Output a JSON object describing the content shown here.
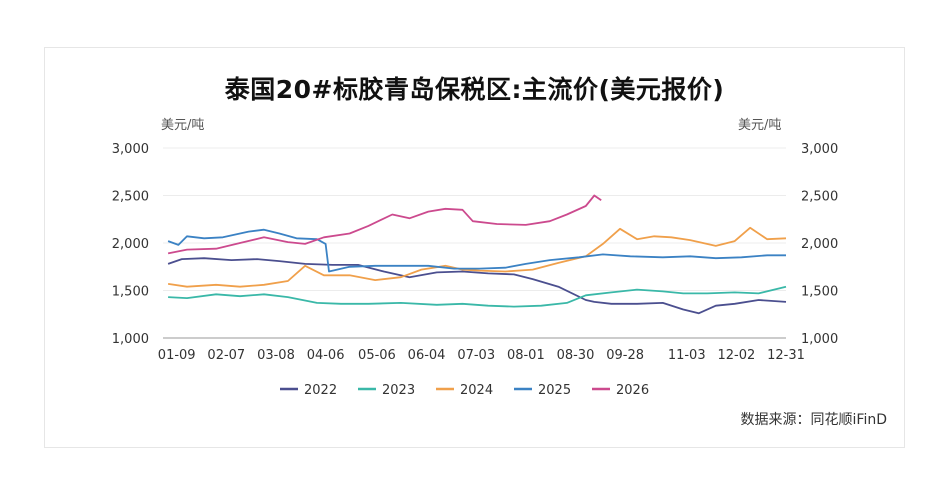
{
  "chart_data": {
    "type": "line",
    "title": "泰国20#标胶青岛保税区:主流价(美元报价)",
    "ylabel_left": "美元/吨",
    "ylabel_right": "美元/吨",
    "ylim": [
      1000,
      3000
    ],
    "yticks": [
      1000,
      1500,
      2000,
      2500,
      3000
    ],
    "ytick_labels": [
      "1,000",
      "1,500",
      "2,000",
      "2,500",
      "3,000"
    ],
    "xticks": [
      "01-09",
      "02-07",
      "03-08",
      "04-06",
      "05-06",
      "06-04",
      "07-03",
      "08-01",
      "08-30",
      "09-28",
      "11-03",
      "12-02",
      "12-31"
    ],
    "x_domain": [
      "01-01",
      "12-31"
    ],
    "grid": true,
    "legend_position": "bottom",
    "source": "数据来源：同花顺iFinD",
    "series": [
      {
        "name": "2022",
        "color": "#4b4f8f",
        "points": [
          [
            "01-04",
            1780
          ],
          [
            "01-12",
            1830
          ],
          [
            "01-25",
            1840
          ],
          [
            "02-10",
            1820
          ],
          [
            "02-25",
            1830
          ],
          [
            "03-10",
            1810
          ],
          [
            "03-25",
            1780
          ],
          [
            "04-10",
            1770
          ],
          [
            "04-25",
            1770
          ],
          [
            "05-10",
            1700
          ],
          [
            "05-25",
            1640
          ],
          [
            "06-10",
            1690
          ],
          [
            "06-25",
            1700
          ],
          [
            "07-10",
            1680
          ],
          [
            "07-25",
            1670
          ],
          [
            "08-05",
            1620
          ],
          [
            "08-20",
            1540
          ],
          [
            "09-05",
            1400
          ],
          [
            "09-10",
            1380
          ],
          [
            "09-20",
            1360
          ],
          [
            "10-05",
            1360
          ],
          [
            "10-20",
            1370
          ],
          [
            "11-01",
            1300
          ],
          [
            "11-10",
            1260
          ],
          [
            "11-20",
            1340
          ],
          [
            "12-01",
            1360
          ],
          [
            "12-15",
            1400
          ],
          [
            "12-31",
            1380
          ]
        ]
      },
      {
        "name": "2023",
        "color": "#3ab8a8",
        "points": [
          [
            "01-04",
            1430
          ],
          [
            "01-15",
            1420
          ],
          [
            "02-01",
            1460
          ],
          [
            "02-15",
            1440
          ],
          [
            "03-01",
            1460
          ],
          [
            "03-15",
            1430
          ],
          [
            "04-01",
            1370
          ],
          [
            "04-15",
            1360
          ],
          [
            "05-01",
            1360
          ],
          [
            "05-20",
            1370
          ],
          [
            "06-10",
            1350
          ],
          [
            "06-25",
            1360
          ],
          [
            "07-10",
            1340
          ],
          [
            "07-25",
            1330
          ],
          [
            "08-10",
            1340
          ],
          [
            "08-25",
            1370
          ],
          [
            "09-05",
            1450
          ],
          [
            "09-20",
            1480
          ],
          [
            "10-05",
            1510
          ],
          [
            "10-20",
            1490
          ],
          [
            "11-01",
            1470
          ],
          [
            "11-15",
            1470
          ],
          [
            "12-01",
            1480
          ],
          [
            "12-15",
            1470
          ],
          [
            "12-31",
            1540
          ]
        ]
      },
      {
        "name": "2024",
        "color": "#f0a04b",
        "points": [
          [
            "01-04",
            1570
          ],
          [
            "01-15",
            1540
          ],
          [
            "02-01",
            1560
          ],
          [
            "02-15",
            1540
          ],
          [
            "03-01",
            1560
          ],
          [
            "03-15",
            1600
          ],
          [
            "03-25",
            1760
          ],
          [
            "04-05",
            1660
          ],
          [
            "04-20",
            1660
          ],
          [
            "05-05",
            1610
          ],
          [
            "05-20",
            1640
          ],
          [
            "06-01",
            1720
          ],
          [
            "06-15",
            1760
          ],
          [
            "06-25",
            1720
          ],
          [
            "07-05",
            1710
          ],
          [
            "07-20",
            1700
          ],
          [
            "08-05",
            1720
          ],
          [
            "08-20",
            1790
          ],
          [
            "09-05",
            1860
          ],
          [
            "09-15",
            1990
          ],
          [
            "09-25",
            2150
          ],
          [
            "10-05",
            2040
          ],
          [
            "10-15",
            2070
          ],
          [
            "10-25",
            2060
          ],
          [
            "11-05",
            2030
          ],
          [
            "11-20",
            1970
          ],
          [
            "12-01",
            2020
          ],
          [
            "12-10",
            2160
          ],
          [
            "12-20",
            2040
          ],
          [
            "12-31",
            2050
          ]
        ]
      },
      {
        "name": "2025",
        "color": "#3b82c4",
        "points": [
          [
            "01-04",
            2020
          ],
          [
            "01-10",
            1980
          ],
          [
            "01-15",
            2070
          ],
          [
            "01-25",
            2050
          ],
          [
            "02-05",
            2060
          ],
          [
            "02-20",
            2120
          ],
          [
            "03-01",
            2140
          ],
          [
            "03-10",
            2100
          ],
          [
            "03-20",
            2050
          ],
          [
            "04-01",
            2040
          ],
          [
            "04-06",
            1990
          ],
          [
            "04-08",
            1700
          ],
          [
            "04-20",
            1750
          ],
          [
            "05-05",
            1760
          ],
          [
            "05-20",
            1760
          ],
          [
            "06-05",
            1760
          ],
          [
            "06-20",
            1730
          ],
          [
            "07-05",
            1730
          ],
          [
            "07-20",
            1740
          ],
          [
            "08-01",
            1780
          ],
          [
            "08-15",
            1820
          ],
          [
            "09-01",
            1850
          ],
          [
            "09-15",
            1880
          ],
          [
            "10-01",
            1860
          ],
          [
            "10-20",
            1850
          ],
          [
            "11-05",
            1860
          ],
          [
            "11-20",
            1840
          ],
          [
            "12-05",
            1850
          ],
          [
            "12-20",
            1870
          ],
          [
            "12-31",
            1870
          ]
        ]
      },
      {
        "name": "2026",
        "color": "#cc4a8e",
        "points": [
          [
            "01-04",
            1890
          ],
          [
            "01-15",
            1930
          ],
          [
            "02-01",
            1940
          ],
          [
            "02-15",
            2000
          ],
          [
            "03-01",
            2060
          ],
          [
            "03-15",
            2010
          ],
          [
            "03-25",
            1990
          ],
          [
            "04-05",
            2060
          ],
          [
            "04-20",
            2100
          ],
          [
            "05-01",
            2180
          ],
          [
            "05-15",
            2300
          ],
          [
            "05-25",
            2260
          ],
          [
            "06-05",
            2330
          ],
          [
            "06-15",
            2360
          ],
          [
            "06-25",
            2350
          ],
          [
            "07-01",
            2230
          ],
          [
            "07-15",
            2200
          ],
          [
            "08-01",
            2190
          ],
          [
            "08-15",
            2230
          ],
          [
            "08-25",
            2300
          ],
          [
            "09-05",
            2390
          ],
          [
            "09-10",
            2500
          ],
          [
            "09-14",
            2450
          ]
        ]
      }
    ]
  }
}
